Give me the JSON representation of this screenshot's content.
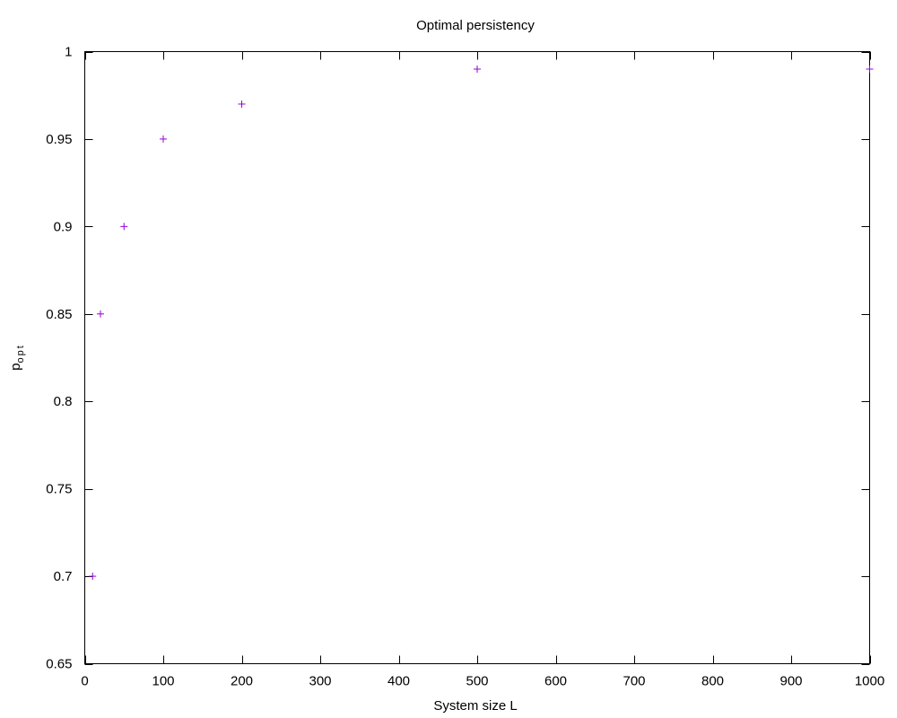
{
  "chart_data": {
    "type": "scatter",
    "title": "Optimal persistency",
    "xlabel": "System size L",
    "ylabel": "p",
    "ylabel_sub": "opt",
    "xlim": [
      0,
      1000
    ],
    "ylim": [
      0.65,
      1
    ],
    "xticks": [
      0,
      100,
      200,
      300,
      400,
      500,
      600,
      700,
      800,
      900,
      1000
    ],
    "yticks": [
      0.65,
      0.7,
      0.75,
      0.8,
      0.85,
      0.9,
      0.95,
      1
    ],
    "ytick_labels": [
      "0.65",
      "0.7",
      "0.75",
      "0.8",
      "0.85",
      "0.9",
      "0.95",
      "1"
    ],
    "grid": false,
    "legend": "none",
    "marker": "plus",
    "color": "#9400d3",
    "series": [
      {
        "x": [
          10,
          20,
          50,
          100,
          200,
          500,
          1000
        ],
        "y": [
          0.7,
          0.85,
          0.9,
          0.95,
          0.97,
          0.99,
          0.99
        ]
      }
    ]
  }
}
